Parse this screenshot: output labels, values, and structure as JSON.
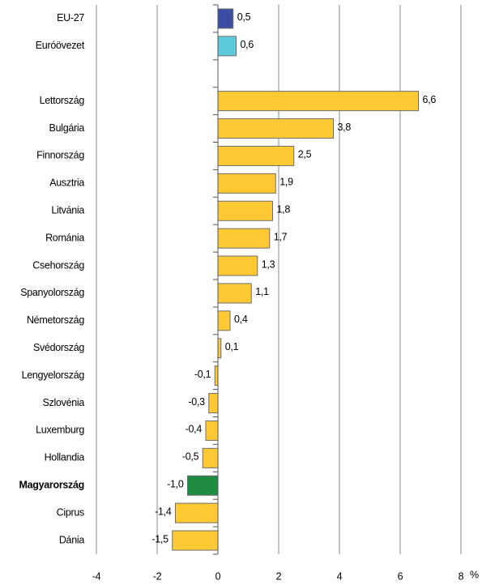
{
  "chart_data": {
    "type": "hbar",
    "categories": [
      "EU-27",
      "Euróövezet",
      null,
      "Lettország",
      "Bulgária",
      "Finnország",
      "Ausztria",
      "Litvánia",
      "Románia",
      "Csehország",
      "Spanyolország",
      "Németország",
      "Svédország",
      "Lengyelország",
      "Szlovénia",
      "Luxemburg",
      "Hollandia",
      "Magyarország",
      "Ciprus",
      "Dánia"
    ],
    "values": [
      0.5,
      0.6,
      null,
      6.6,
      3.8,
      2.5,
      1.9,
      1.8,
      1.7,
      1.3,
      1.1,
      0.4,
      0.1,
      -0.1,
      -0.3,
      -0.4,
      -0.5,
      -1.0,
      -1.4,
      -1.5
    ],
    "value_labels": [
      "0,5",
      "0,6",
      null,
      "6,6",
      "3,8",
      "2,5",
      "1,9",
      "1,8",
      "1,7",
      "1,3",
      "1,1",
      "0,4",
      "0,1",
      "-0,1",
      "-0,3",
      "-0,4",
      "-0,5",
      "-1,0",
      "-1,4",
      "-1,5"
    ],
    "colors": [
      "#3b4ea3",
      "#5cc9dc",
      null,
      "#ffc933",
      "#ffc933",
      "#ffc933",
      "#ffc933",
      "#ffc933",
      "#ffc933",
      "#ffc933",
      "#ffc933",
      "#ffc933",
      "#ffc933",
      "#ffc933",
      "#ffc933",
      "#ffc933",
      "#ffc933",
      "#1f8b40",
      "#ffc933",
      "#ffc933"
    ],
    "emphasis": [
      17
    ],
    "xlim": [
      -4,
      8
    ],
    "xticks": [
      -4,
      -2,
      0,
      2,
      4,
      6,
      8
    ],
    "xlabel": "%",
    "grid": true
  }
}
